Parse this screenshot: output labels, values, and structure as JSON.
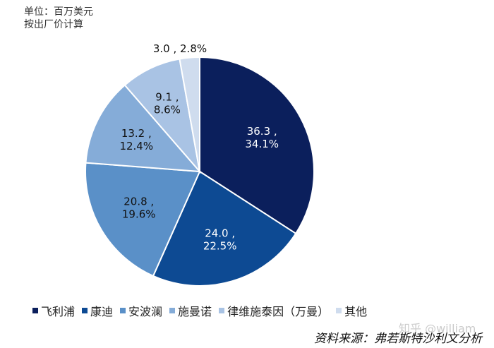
{
  "unit_note": {
    "line1": "单位：百万美元",
    "line2": "按出厂价计算"
  },
  "chart_data": {
    "type": "pie",
    "title": "",
    "slices": [
      {
        "name": "飞利浦",
        "value": 36.3,
        "percent": "34.1%",
        "color": "#0b1f5c",
        "label_color": "#ffffff"
      },
      {
        "name": "康迪",
        "value": 24.0,
        "percent": "22.5%",
        "color": "#0d4a93",
        "label_color": "#ffffff"
      },
      {
        "name": "安波澜",
        "value": 20.8,
        "percent": "19.6%",
        "color": "#5a90c8",
        "label_color": "#111111"
      },
      {
        "name": "施曼诺",
        "value": 13.2,
        "percent": "12.4%",
        "color": "#85acd8",
        "label_color": "#111111"
      },
      {
        "name": "律维施泰因（万曼）",
        "value": 9.1,
        "percent": "8.6%",
        "color": "#a9c3e4",
        "label_color": "#111111"
      },
      {
        "name": "其他",
        "value": 3.0,
        "percent": "2.8%",
        "color": "#cfdcee",
        "label_color": "#111111"
      }
    ],
    "data_labels": [
      "36.3 ,\n34.1%",
      "24.0 ,\n22.5%",
      "20.8 ,\n19.6%",
      "13.2 ,\n12.4%",
      "9.1 ,\n8.6%",
      "3.0 , 2.8%"
    ],
    "legend_position": "bottom"
  },
  "source_note": "资料来源：弗若斯特沙利文分析",
  "watermark": "知乎 @william"
}
